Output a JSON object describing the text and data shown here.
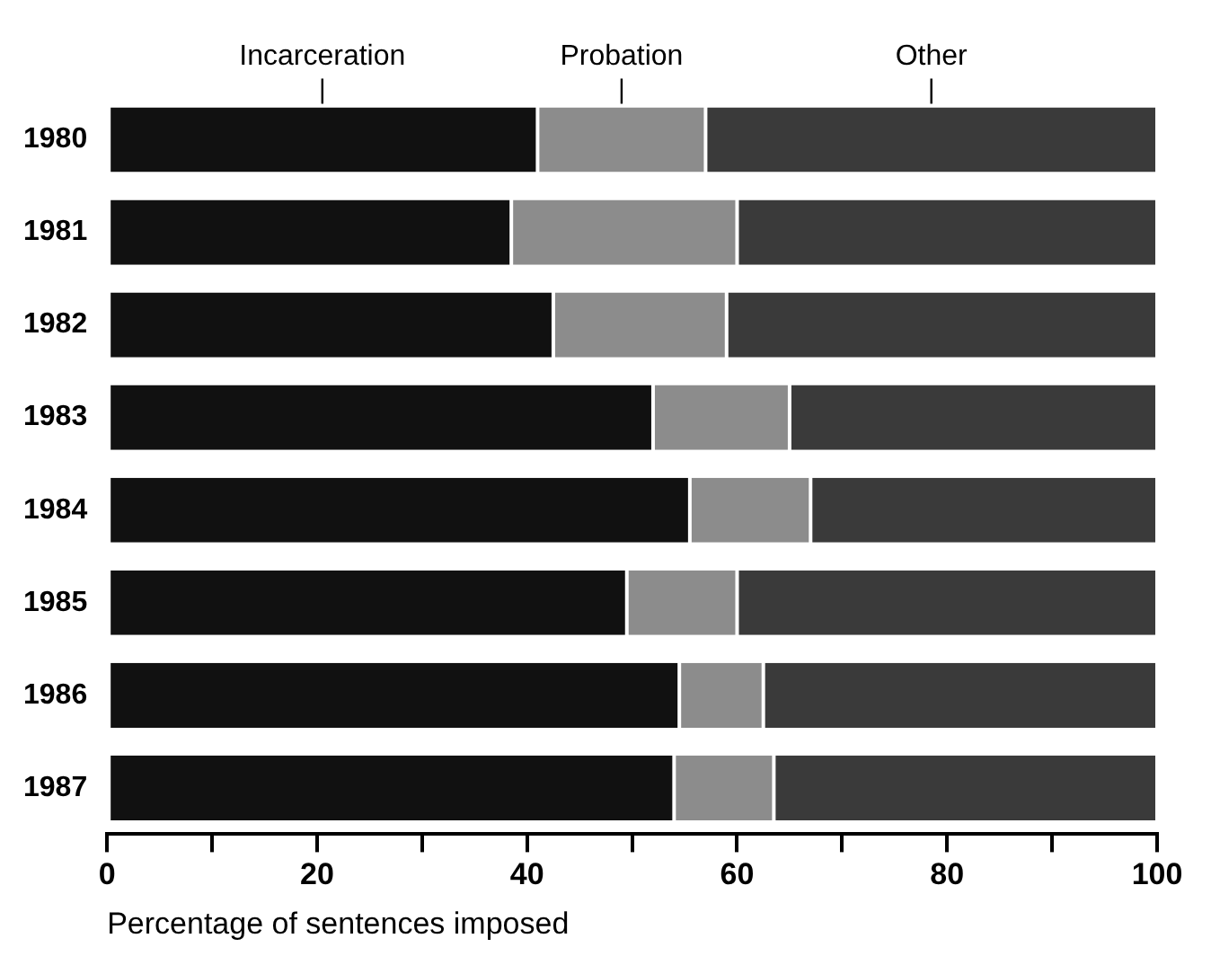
{
  "chart_data": {
    "type": "bar",
    "orientation": "horizontal",
    "stacked": true,
    "xlabel": "Percentage of sentences imposed",
    "categories": [
      "1980",
      "1981",
      "1982",
      "1983",
      "1984",
      "1985",
      "1986",
      "1987"
    ],
    "series": [
      {
        "name": "Incarceration",
        "color": "#111111",
        "values": [
          41,
          38.5,
          42.5,
          52,
          55.5,
          49.5,
          54.5,
          54
        ]
      },
      {
        "name": "Probation",
        "color": "#8c8c8c",
        "values": [
          16,
          21.5,
          16.5,
          13,
          11.5,
          10.5,
          8,
          9.5
        ]
      },
      {
        "name": "Other",
        "color": "#3a3a3a",
        "values": [
          43,
          40,
          41,
          35,
          33,
          40,
          37.5,
          36.5
        ]
      }
    ],
    "xlim": [
      0,
      100
    ],
    "xticks": [
      0,
      {
        "value": 10,
        "label": null
      },
      20,
      {
        "value": 30,
        "label": null
      },
      40,
      {
        "value": 50,
        "label": null
      },
      60,
      {
        "value": 70,
        "label": null
      },
      80,
      {
        "value": 90,
        "label": null
      },
      100
    ],
    "grid": false,
    "legend": "top"
  }
}
